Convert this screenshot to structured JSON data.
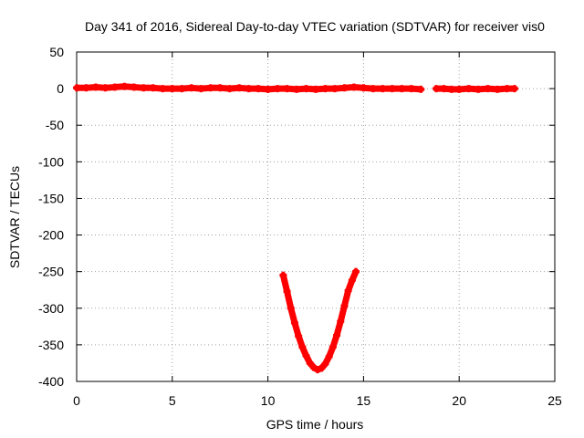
{
  "chart_data": {
    "type": "scatter",
    "title": "Day 341 of 2016, Sidereal Day-to-day VTEC variation (SDTVAR) for receiver vis0",
    "xlabel": "GPS time / hours",
    "ylabel": "SDTVAR / TECUs",
    "xlim": [
      0,
      25
    ],
    "ylim": [
      -400,
      50
    ],
    "xticks": [
      0,
      5,
      10,
      15,
      20,
      25
    ],
    "yticks": [
      50,
      0,
      -50,
      -100,
      -150,
      -200,
      -250,
      -300,
      -350,
      -400
    ],
    "grid": true,
    "legend": "none",
    "series_color": "#ff0000",
    "series": [
      {
        "points": [
          [
            0.0,
            1
          ],
          [
            0.5,
            1
          ],
          [
            1.0,
            2
          ],
          [
            1.5,
            1
          ],
          [
            2.0,
            2
          ],
          [
            2.5,
            3
          ],
          [
            3.0,
            2
          ],
          [
            3.5,
            1
          ],
          [
            4.0,
            1
          ],
          [
            4.5,
            0
          ],
          [
            5.0,
            0
          ],
          [
            5.5,
            0
          ],
          [
            6.0,
            1
          ],
          [
            6.5,
            0
          ],
          [
            7.0,
            1
          ],
          [
            7.5,
            1
          ],
          [
            8.0,
            0
          ],
          [
            8.5,
            1
          ],
          [
            9.0,
            0
          ],
          [
            9.5,
            0
          ],
          [
            10.0,
            -1
          ],
          [
            10.5,
            0
          ],
          [
            11.0,
            0
          ],
          [
            11.5,
            -1
          ],
          [
            12.0,
            0
          ],
          [
            12.5,
            -1
          ],
          [
            13.0,
            0
          ],
          [
            13.5,
            0
          ],
          [
            14.0,
            1
          ],
          [
            14.5,
            2
          ],
          [
            15.0,
            1
          ],
          [
            15.5,
            0
          ],
          [
            16.0,
            0
          ],
          [
            16.5,
            0
          ],
          [
            17.0,
            0
          ],
          [
            17.5,
            0
          ],
          [
            18.0,
            -1
          ],
          [
            18.8,
            0
          ],
          [
            19.2,
            0
          ],
          [
            19.6,
            -1
          ],
          [
            20.0,
            -1
          ],
          [
            20.5,
            0
          ],
          [
            21.0,
            -1
          ],
          [
            21.5,
            0
          ],
          [
            22.0,
            -1
          ],
          [
            22.5,
            0
          ],
          [
            22.9,
            0
          ]
        ]
      },
      {
        "points": [
          [
            10.8,
            -255
          ],
          [
            11.0,
            -277
          ],
          [
            11.2,
            -300
          ],
          [
            11.4,
            -320
          ],
          [
            11.6,
            -338
          ],
          [
            11.8,
            -353
          ],
          [
            12.0,
            -365
          ],
          [
            12.2,
            -375
          ],
          [
            12.4,
            -381
          ],
          [
            12.6,
            -384
          ],
          [
            12.8,
            -382
          ],
          [
            13.0,
            -376
          ],
          [
            13.2,
            -366
          ],
          [
            13.4,
            -353
          ],
          [
            13.6,
            -337
          ],
          [
            13.8,
            -318
          ],
          [
            14.0,
            -297
          ],
          [
            14.2,
            -276
          ],
          [
            14.4,
            -262
          ],
          [
            14.6,
            -250
          ]
        ]
      }
    ]
  }
}
